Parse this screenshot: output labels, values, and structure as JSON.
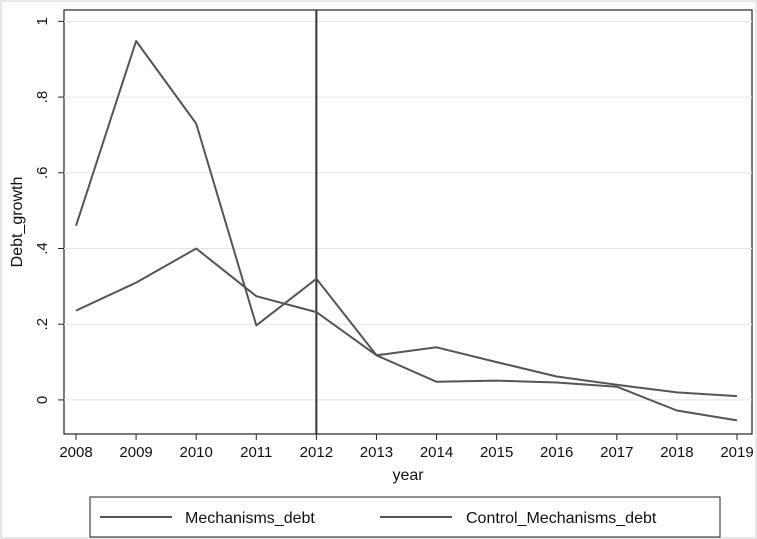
{
  "chart_data": {
    "type": "line",
    "title": "",
    "xlabel": "year",
    "ylabel": "Debt_growth",
    "x": [
      2008,
      2009,
      2010,
      2011,
      2012,
      2013,
      2014,
      2015,
      2016,
      2017,
      2018,
      2019
    ],
    "xticks": [
      "2008",
      "2009",
      "2010",
      "2011",
      "2012",
      "2013",
      "2014",
      "2015",
      "2016",
      "2017",
      "2018",
      "2019"
    ],
    "yticks": [
      {
        "value": 0,
        "label": "0"
      },
      {
        "value": 0.2,
        "label": ".2"
      },
      {
        "value": 0.4,
        "label": ".4"
      },
      {
        "value": 0.6,
        "label": ".6"
      },
      {
        "value": 0.8,
        "label": ".8"
      },
      {
        "value": 1,
        "label": "1"
      }
    ],
    "xlim": [
      2008,
      2019
    ],
    "ylim": [
      -0.09,
      1.03
    ],
    "grid": "horizontal",
    "vertical_reference_line": 2012,
    "legend_position": "bottom",
    "series": [
      {
        "name": "Mechanisms_debt",
        "values": [
          0.46,
          0.948,
          0.73,
          0.197,
          0.32,
          0.118,
          0.048,
          0.051,
          0.046,
          0.035,
          -0.028,
          -0.054
        ],
        "color": "#555555"
      },
      {
        "name": "Control_Mechanisms_debt",
        "values": [
          0.236,
          0.31,
          0.4,
          0.274,
          0.232,
          0.118,
          0.139,
          0.1,
          0.062,
          0.04,
          0.02,
          0.01
        ],
        "color": "#555555"
      }
    ]
  }
}
